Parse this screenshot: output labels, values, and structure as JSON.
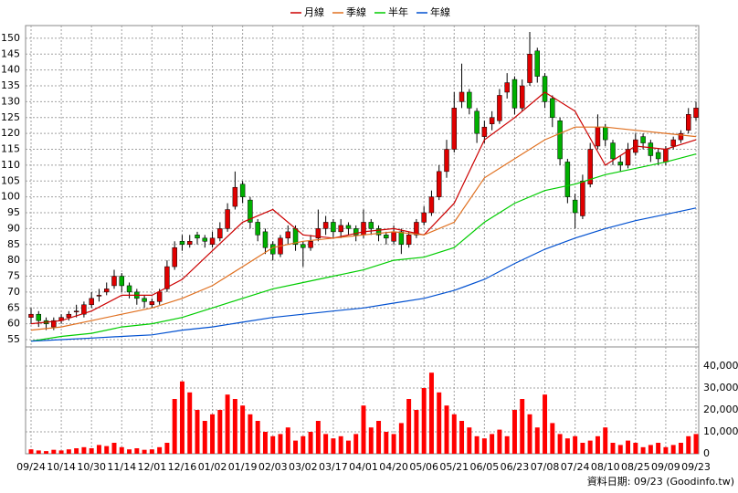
{
  "chart_data": {
    "type": "candlestick",
    "footnote": "資料日期: 09/23 (Goodinfo.tw)",
    "categories": [
      "09/24",
      null,
      null,
      null,
      "10/14",
      null,
      null,
      null,
      "10/30",
      null,
      null,
      null,
      "11/14",
      null,
      null,
      null,
      "12/01",
      null,
      null,
      null,
      "12/16",
      null,
      null,
      null,
      "01/02",
      null,
      null,
      null,
      "01/19",
      null,
      null,
      null,
      "02/03",
      null,
      null,
      null,
      "03/02",
      null,
      null,
      null,
      "03/17",
      null,
      null,
      null,
      "04/01",
      null,
      null,
      null,
      "04/20",
      null,
      null,
      null,
      "05/06",
      null,
      null,
      null,
      "05/21",
      null,
      null,
      null,
      "06/05",
      null,
      null,
      null,
      "06/23",
      null,
      null,
      null,
      "07/08",
      null,
      null,
      null,
      "07/24",
      null,
      null,
      null,
      "08/10",
      null,
      null,
      null,
      "08/25",
      null,
      null,
      null,
      "09/09",
      null,
      null,
      null,
      "09/23"
    ],
    "open": [
      62,
      63,
      61,
      59,
      61,
      62,
      64,
      63,
      66,
      69,
      70,
      72,
      75,
      72,
      70,
      68,
      66,
      67,
      71,
      78,
      86,
      85,
      88,
      87,
      85,
      87,
      90,
      97,
      104,
      99,
      92,
      89,
      85,
      82,
      87,
      90,
      85,
      84,
      87,
      90,
      92,
      89,
      91,
      90,
      88,
      92,
      90,
      88,
      86,
      89,
      85,
      88,
      92,
      95,
      100,
      108,
      115,
      130,
      133,
      127,
      119,
      123,
      124,
      133,
      137,
      128,
      136,
      146,
      138,
      131,
      124,
      111,
      99,
      94,
      104,
      116,
      122,
      117,
      111,
      110,
      114,
      119,
      117,
      114,
      111,
      116,
      118,
      121,
      125
    ],
    "high": [
      65,
      64,
      62,
      62,
      63,
      64,
      66,
      67,
      70,
      71,
      73,
      77,
      76,
      73,
      71,
      69,
      68,
      71,
      80,
      86,
      88,
      88,
      89,
      88,
      89,
      92,
      98,
      108,
      105,
      100,
      93,
      90,
      86,
      88,
      91,
      91,
      86,
      88,
      96,
      94,
      93,
      93,
      92,
      91,
      96,
      93,
      91,
      89,
      91,
      90,
      89,
      93,
      97,
      102,
      110,
      118,
      133,
      142,
      134,
      128,
      124,
      127,
      134,
      139,
      138,
      137,
      152,
      147,
      139,
      132,
      125,
      112,
      101,
      107,
      117,
      126,
      123,
      118,
      113,
      117,
      120,
      120,
      118,
      115,
      116,
      119,
      121,
      128,
      130
    ],
    "low": [
      60,
      59,
      58,
      58,
      60,
      61,
      62,
      62,
      65,
      67,
      69,
      71,
      70,
      68,
      66,
      65,
      65,
      66,
      70,
      77,
      83,
      84,
      85,
      84,
      84,
      86,
      89,
      96,
      98,
      90,
      86,
      82,
      80,
      81,
      85,
      83,
      78,
      83,
      86,
      88,
      87,
      87,
      88,
      86,
      87,
      88,
      86,
      85,
      85,
      82,
      84,
      87,
      91,
      94,
      99,
      106,
      114,
      128,
      126,
      117,
      117,
      121,
      123,
      131,
      126,
      127,
      135,
      136,
      128,
      122,
      110,
      98,
      90,
      93,
      103,
      115,
      116,
      110,
      108,
      109,
      113,
      115,
      111,
      110,
      110,
      115,
      117,
      120,
      124
    ],
    "close": [
      63,
      61,
      60,
      61,
      62,
      63,
      64,
      66,
      68,
      69,
      71,
      75,
      72,
      70,
      68,
      67,
      67,
      70,
      78,
      84,
      85,
      86,
      87,
      86,
      87,
      90,
      96,
      103,
      100,
      92,
      88,
      84,
      82,
      87,
      89,
      85,
      84,
      86,
      90,
      92,
      89,
      91,
      90,
      88,
      92,
      90,
      88,
      87,
      89,
      85,
      88,
      92,
      95,
      100,
      108,
      115,
      128,
      133,
      128,
      120,
      122,
      125,
      132,
      136,
      128,
      135,
      145,
      138,
      130,
      125,
      112,
      100,
      95,
      105,
      115,
      122,
      118,
      112,
      110,
      115,
      118,
      117,
      113,
      112,
      115,
      118,
      120,
      126,
      128
    ],
    "volume": [
      2000,
      1500,
      1200,
      1800,
      1500,
      2000,
      2500,
      3000,
      2500,
      4000,
      3500,
      5000,
      3000,
      2000,
      2500,
      1800,
      2000,
      3000,
      5000,
      25000,
      33000,
      28000,
      20000,
      15000,
      18000,
      20000,
      27000,
      25000,
      22000,
      18000,
      15000,
      10000,
      8000,
      9000,
      12000,
      6000,
      8000,
      10000,
      15000,
      9000,
      7000,
      8000,
      6000,
      9000,
      22000,
      12000,
      15000,
      10000,
      9000,
      14000,
      25000,
      20000,
      30000,
      37000,
      28000,
      22000,
      18000,
      15000,
      12000,
      8000,
      7000,
      9000,
      11000,
      8000,
      20000,
      25000,
      18000,
      12000,
      27000,
      14000,
      9000,
      7000,
      8000,
      5000,
      6000,
      8000,
      12000,
      5000,
      4000,
      6000,
      5000,
      3000,
      4000,
      5000,
      3000,
      4000,
      5000,
      8000,
      9000
    ],
    "up_color": "#e00000",
    "down_color": "#00b000",
    "volume_color": "#ff0000",
    "series": [
      {
        "name": "月線",
        "color": "#cc0000",
        "x": [
          0,
          4,
          8,
          12,
          16,
          20,
          24,
          28,
          32,
          36,
          40,
          44,
          48,
          52,
          56,
          60,
          64,
          68,
          72,
          76,
          80,
          84,
          88
        ],
        "values": [
          60,
          61,
          64,
          69,
          69,
          74,
          83,
          92,
          96,
          88,
          87,
          89,
          90,
          88,
          98,
          118,
          125,
          133,
          127,
          110,
          116,
          115,
          118
        ]
      },
      {
        "name": "季線",
        "color": "#e07020",
        "x": [
          0,
          4,
          8,
          12,
          16,
          20,
          24,
          28,
          32,
          36,
          40,
          44,
          48,
          52,
          56,
          60,
          64,
          68,
          72,
          76,
          80,
          84,
          88
        ],
        "values": [
          58,
          59,
          61,
          63,
          65,
          68,
          72,
          78,
          84,
          86,
          87,
          88,
          89,
          88,
          92,
          106,
          112,
          118,
          122,
          122,
          121,
          120,
          119
        ]
      },
      {
        "name": "半年",
        "color": "#00cc00",
        "x": [
          0,
          4,
          8,
          12,
          16,
          20,
          24,
          28,
          32,
          36,
          40,
          44,
          48,
          52,
          56,
          60,
          64,
          68,
          72,
          76,
          80,
          84,
          88
        ],
        "values": [
          54.5,
          56,
          57,
          59,
          60,
          62,
          65,
          68,
          71,
          73,
          75,
          77,
          80,
          81,
          84,
          92,
          98,
          102,
          104,
          107,
          109,
          111,
          113.5
        ]
      },
      {
        "name": "年線",
        "color": "#0050d0",
        "x": [
          0,
          4,
          8,
          12,
          16,
          20,
          24,
          28,
          32,
          36,
          40,
          44,
          48,
          52,
          56,
          60,
          64,
          68,
          72,
          76,
          80,
          84,
          88
        ],
        "values": [
          54.5,
          55,
          55.5,
          56,
          56.5,
          58,
          59,
          60.5,
          62,
          63,
          64,
          65,
          66.5,
          68,
          70.5,
          74,
          79,
          83.5,
          87,
          90,
          92.5,
          94.5,
          96.5
        ]
      }
    ],
    "ylim": [
      52.7,
      154
    ],
    "yticks": [
      55,
      60,
      65,
      70,
      75,
      80,
      85,
      90,
      95,
      100,
      105,
      110,
      115,
      120,
      125,
      130,
      135,
      140,
      145,
      150
    ],
    "volume_ylim": [
      0,
      48750
    ],
    "volume_ticks": [
      0,
      {
        "value": 10000,
        "label": "10,000"
      },
      {
        "value": 20000,
        "label": "20,000"
      },
      {
        "value": 30000,
        "label": "30,000"
      },
      {
        "value": 40000,
        "label": "40,000"
      }
    ],
    "grid": true
  }
}
